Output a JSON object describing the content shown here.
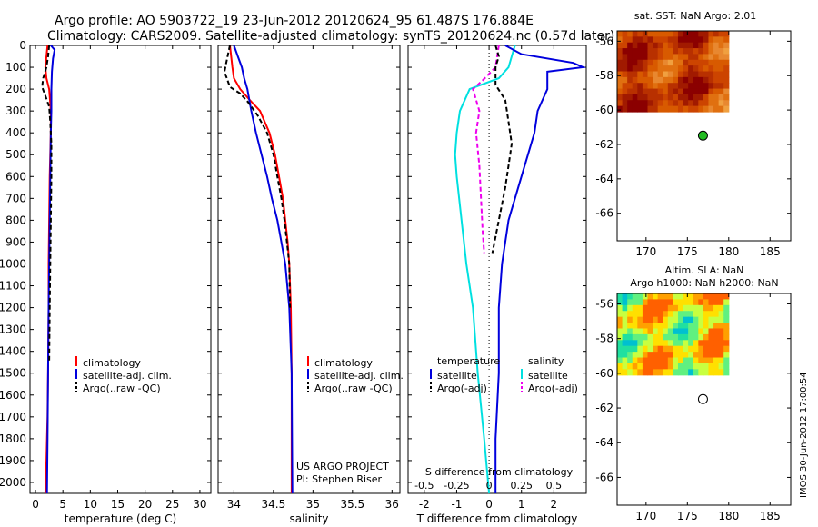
{
  "title_line1": "Argo profile: AO 5903722_19 23-Jun-2012 20120624_95 61.487S 176.884E",
  "title_line2": "Climatology: CARS2009. Satellite-adjusted climatology: synTS_20120624.nc (0.57d later)",
  "stamp": "IMOS 30-Jun-2012 17:00:54",
  "colors": {
    "climatology": "#ff0000",
    "satellite": "#0000dd",
    "argo": "#000000",
    "salinity_satellite": "#00e0e0",
    "salinity_argo": "#ee00ee",
    "argo_dot": "#22bb22"
  },
  "chart_data": [
    {
      "type": "line",
      "name": "temperature-profile",
      "xlabel": "temperature (deg C)",
      "ylabel": "",
      "xlim": [
        -1,
        32
      ],
      "ylim": [
        2050,
        0
      ],
      "x_ticks": [
        0,
        5,
        10,
        15,
        20,
        25,
        30
      ],
      "y_ticks": [
        0,
        100,
        200,
        300,
        400,
        500,
        600,
        700,
        800,
        900,
        1000,
        1100,
        1200,
        1300,
        1400,
        1500,
        1600,
        1700,
        1800,
        1900,
        2000
      ],
      "legend": [
        "climatology",
        "satellite-adj. clim.",
        "Argo(..raw -QC)"
      ],
      "legend_position": "lower-right",
      "series": [
        {
          "name": "climatology",
          "style": "solid",
          "x": [
            2.2,
            2.0,
            1.8,
            2.0,
            2.5,
            2.8,
            2.8,
            2.6,
            2.5,
            2.4,
            2.4,
            2.3,
            2.2,
            2.0,
            1.8
          ],
          "y": [
            0,
            50,
            100,
            150,
            200,
            300,
            400,
            600,
            800,
            1000,
            1200,
            1500,
            1700,
            1900,
            2050
          ]
        },
        {
          "name": "satellite-adj. clim.",
          "style": "solid",
          "x": [
            2.8,
            3.5,
            3.2,
            3.0,
            2.9,
            2.9,
            2.8,
            2.7,
            2.6,
            2.5,
            2.4,
            2.3,
            2.2,
            2.1
          ],
          "y": [
            0,
            20,
            60,
            120,
            200,
            300,
            400,
            600,
            800,
            1000,
            1200,
            1500,
            1800,
            2050
          ]
        },
        {
          "name": "Argo(..raw -QC)",
          "style": "dashed",
          "x": [
            2.5,
            2.3,
            2.0,
            1.4,
            1.2,
            1.8,
            2.5,
            2.7,
            2.9,
            2.9,
            2.8,
            2.7,
            2.6,
            2.5
          ],
          "y": [
            0,
            50,
            100,
            150,
            190,
            230,
            280,
            350,
            450,
            600,
            800,
            1000,
            1200,
            1450
          ]
        }
      ]
    },
    {
      "type": "line",
      "name": "salinity-profile",
      "xlabel": "salinity",
      "ylabel": "",
      "xlim": [
        33.8,
        36.1
      ],
      "ylim": [
        2050,
        0
      ],
      "x_ticks": [
        34,
        34.5,
        35,
        35.5,
        36
      ],
      "legend": [
        "climatology",
        "satellite-adj. clim.",
        "Argo(..raw -QC)"
      ],
      "legend_position": "lower-right",
      "annotations": [
        "US ARGO PROJECT",
        "PI: Stephen Riser"
      ],
      "series": [
        {
          "name": "climatology",
          "style": "solid",
          "x": [
            33.95,
            33.98,
            34.0,
            34.08,
            34.2,
            34.33,
            34.45,
            34.52,
            34.57,
            34.62,
            34.65,
            34.68,
            34.7,
            34.72,
            34.73,
            34.73,
            34.73
          ],
          "y": [
            0,
            100,
            150,
            200,
            250,
            300,
            400,
            500,
            600,
            700,
            800,
            900,
            1000,
            1200,
            1500,
            1800,
            2050
          ]
        },
        {
          "name": "satellite-adj. clim.",
          "style": "solid",
          "x": [
            34.0,
            34.05,
            34.1,
            34.13,
            34.17,
            34.22,
            34.28,
            34.35,
            34.42,
            34.48,
            34.55,
            34.6,
            34.65,
            34.7,
            34.73,
            34.74
          ],
          "y": [
            0,
            50,
            100,
            150,
            200,
            300,
            400,
            500,
            600,
            700,
            800,
            900,
            1000,
            1200,
            1500,
            2050
          ]
        },
        {
          "name": "Argo(..raw -QC)",
          "style": "dashed",
          "x": [
            33.95,
            33.92,
            33.88,
            33.95,
            34.08,
            34.18,
            34.3,
            34.42,
            34.5,
            34.55,
            34.6,
            34.64,
            34.67,
            34.7,
            34.71
          ],
          "y": [
            0,
            50,
            120,
            190,
            220,
            260,
            320,
            400,
            500,
            600,
            700,
            800,
            900,
            1000,
            1200
          ]
        }
      ]
    },
    {
      "type": "line",
      "name": "difference-profile",
      "xlabel": "T difference from climatology",
      "x_ticks": [
        -2,
        -1,
        0,
        1,
        2
      ],
      "xlim": [
        -2.5,
        3
      ],
      "ylim": [
        2050,
        0
      ],
      "top_label": "S difference from climatology",
      "top_ticks": [
        "-0.5",
        "-0.25",
        "0",
        "0.25",
        "0.5"
      ],
      "top_tick_positions": [
        -2,
        -1,
        0,
        1,
        2
      ],
      "legend_temperature_title": "temperature",
      "legend_salinity_title": "salinity",
      "legend": [
        "satellite",
        "Argo(-adj)",
        "satellite",
        "Argo(-adj)"
      ],
      "legend_position": "lower-right",
      "series": [
        {
          "name": "temperature satellite",
          "style": "solid",
          "x": [
            0.5,
            1.0,
            2.6,
            2.9,
            1.8,
            1.8,
            1.5,
            1.4,
            1.0,
            0.6,
            0.4,
            0.3,
            0.3,
            0.2,
            0.2,
            0.2
          ],
          "y": [
            0,
            40,
            80,
            100,
            120,
            200,
            300,
            400,
            600,
            800,
            1000,
            1200,
            1500,
            1800,
            1950,
            2050
          ]
        },
        {
          "name": "temperature Argo(-adj)",
          "style": "dashed",
          "x": [
            0.2,
            0.3,
            0.2,
            0.2,
            0.5,
            0.6,
            0.7,
            0.6,
            0.5,
            0.3,
            0.1
          ],
          "y": [
            0,
            50,
            100,
            180,
            250,
            350,
            450,
            550,
            650,
            800,
            950
          ]
        },
        {
          "name": "salinity satellite",
          "style": "solid",
          "x": [
            0.8,
            0.7,
            0.6,
            0.3,
            -0.6,
            -0.9,
            -1.0,
            -1.05,
            -1.0,
            -0.85,
            -0.7,
            -0.5,
            -0.35,
            -0.15,
            0
          ],
          "y": [
            0,
            50,
            100,
            150,
            200,
            300,
            400,
            500,
            600,
            800,
            1000,
            1200,
            1500,
            1800,
            2050
          ]
        },
        {
          "name": "salinity Argo(-adj)",
          "style": "dashed",
          "x": [
            0.3,
            0.2,
            -0.2,
            -0.5,
            -0.3,
            -0.4,
            -0.3,
            -0.25,
            -0.2,
            -0.15
          ],
          "y": [
            0,
            100,
            160,
            200,
            300,
            400,
            550,
            700,
            850,
            950
          ]
        }
      ]
    },
    {
      "type": "heatmap",
      "name": "sst-map",
      "title": "sat. SST: NaN Argo: 2.01",
      "x_ticks": [
        170,
        175,
        180,
        185
      ],
      "y_ticks": [
        -56,
        -58,
        -60,
        -62,
        -64,
        -66
      ],
      "xlim": [
        166.5,
        187.5
      ],
      "ylim": [
        -67.6,
        -55.4
      ],
      "argo_position": [
        176.884,
        -61.487
      ]
    },
    {
      "type": "heatmap",
      "name": "sla-map",
      "title": "Altim. SLA: NaN",
      "subtitle": "Argo h1000: NaN h2000: NaN",
      "x_ticks": [
        170,
        175,
        180,
        185
      ],
      "y_ticks": [
        -56,
        -58,
        -60,
        -62,
        -64,
        -66
      ],
      "xlim": [
        166.5,
        187.5
      ],
      "ylim": [
        -67.6,
        -55.4
      ],
      "argo_position": [
        176.884,
        -61.487
      ]
    }
  ]
}
